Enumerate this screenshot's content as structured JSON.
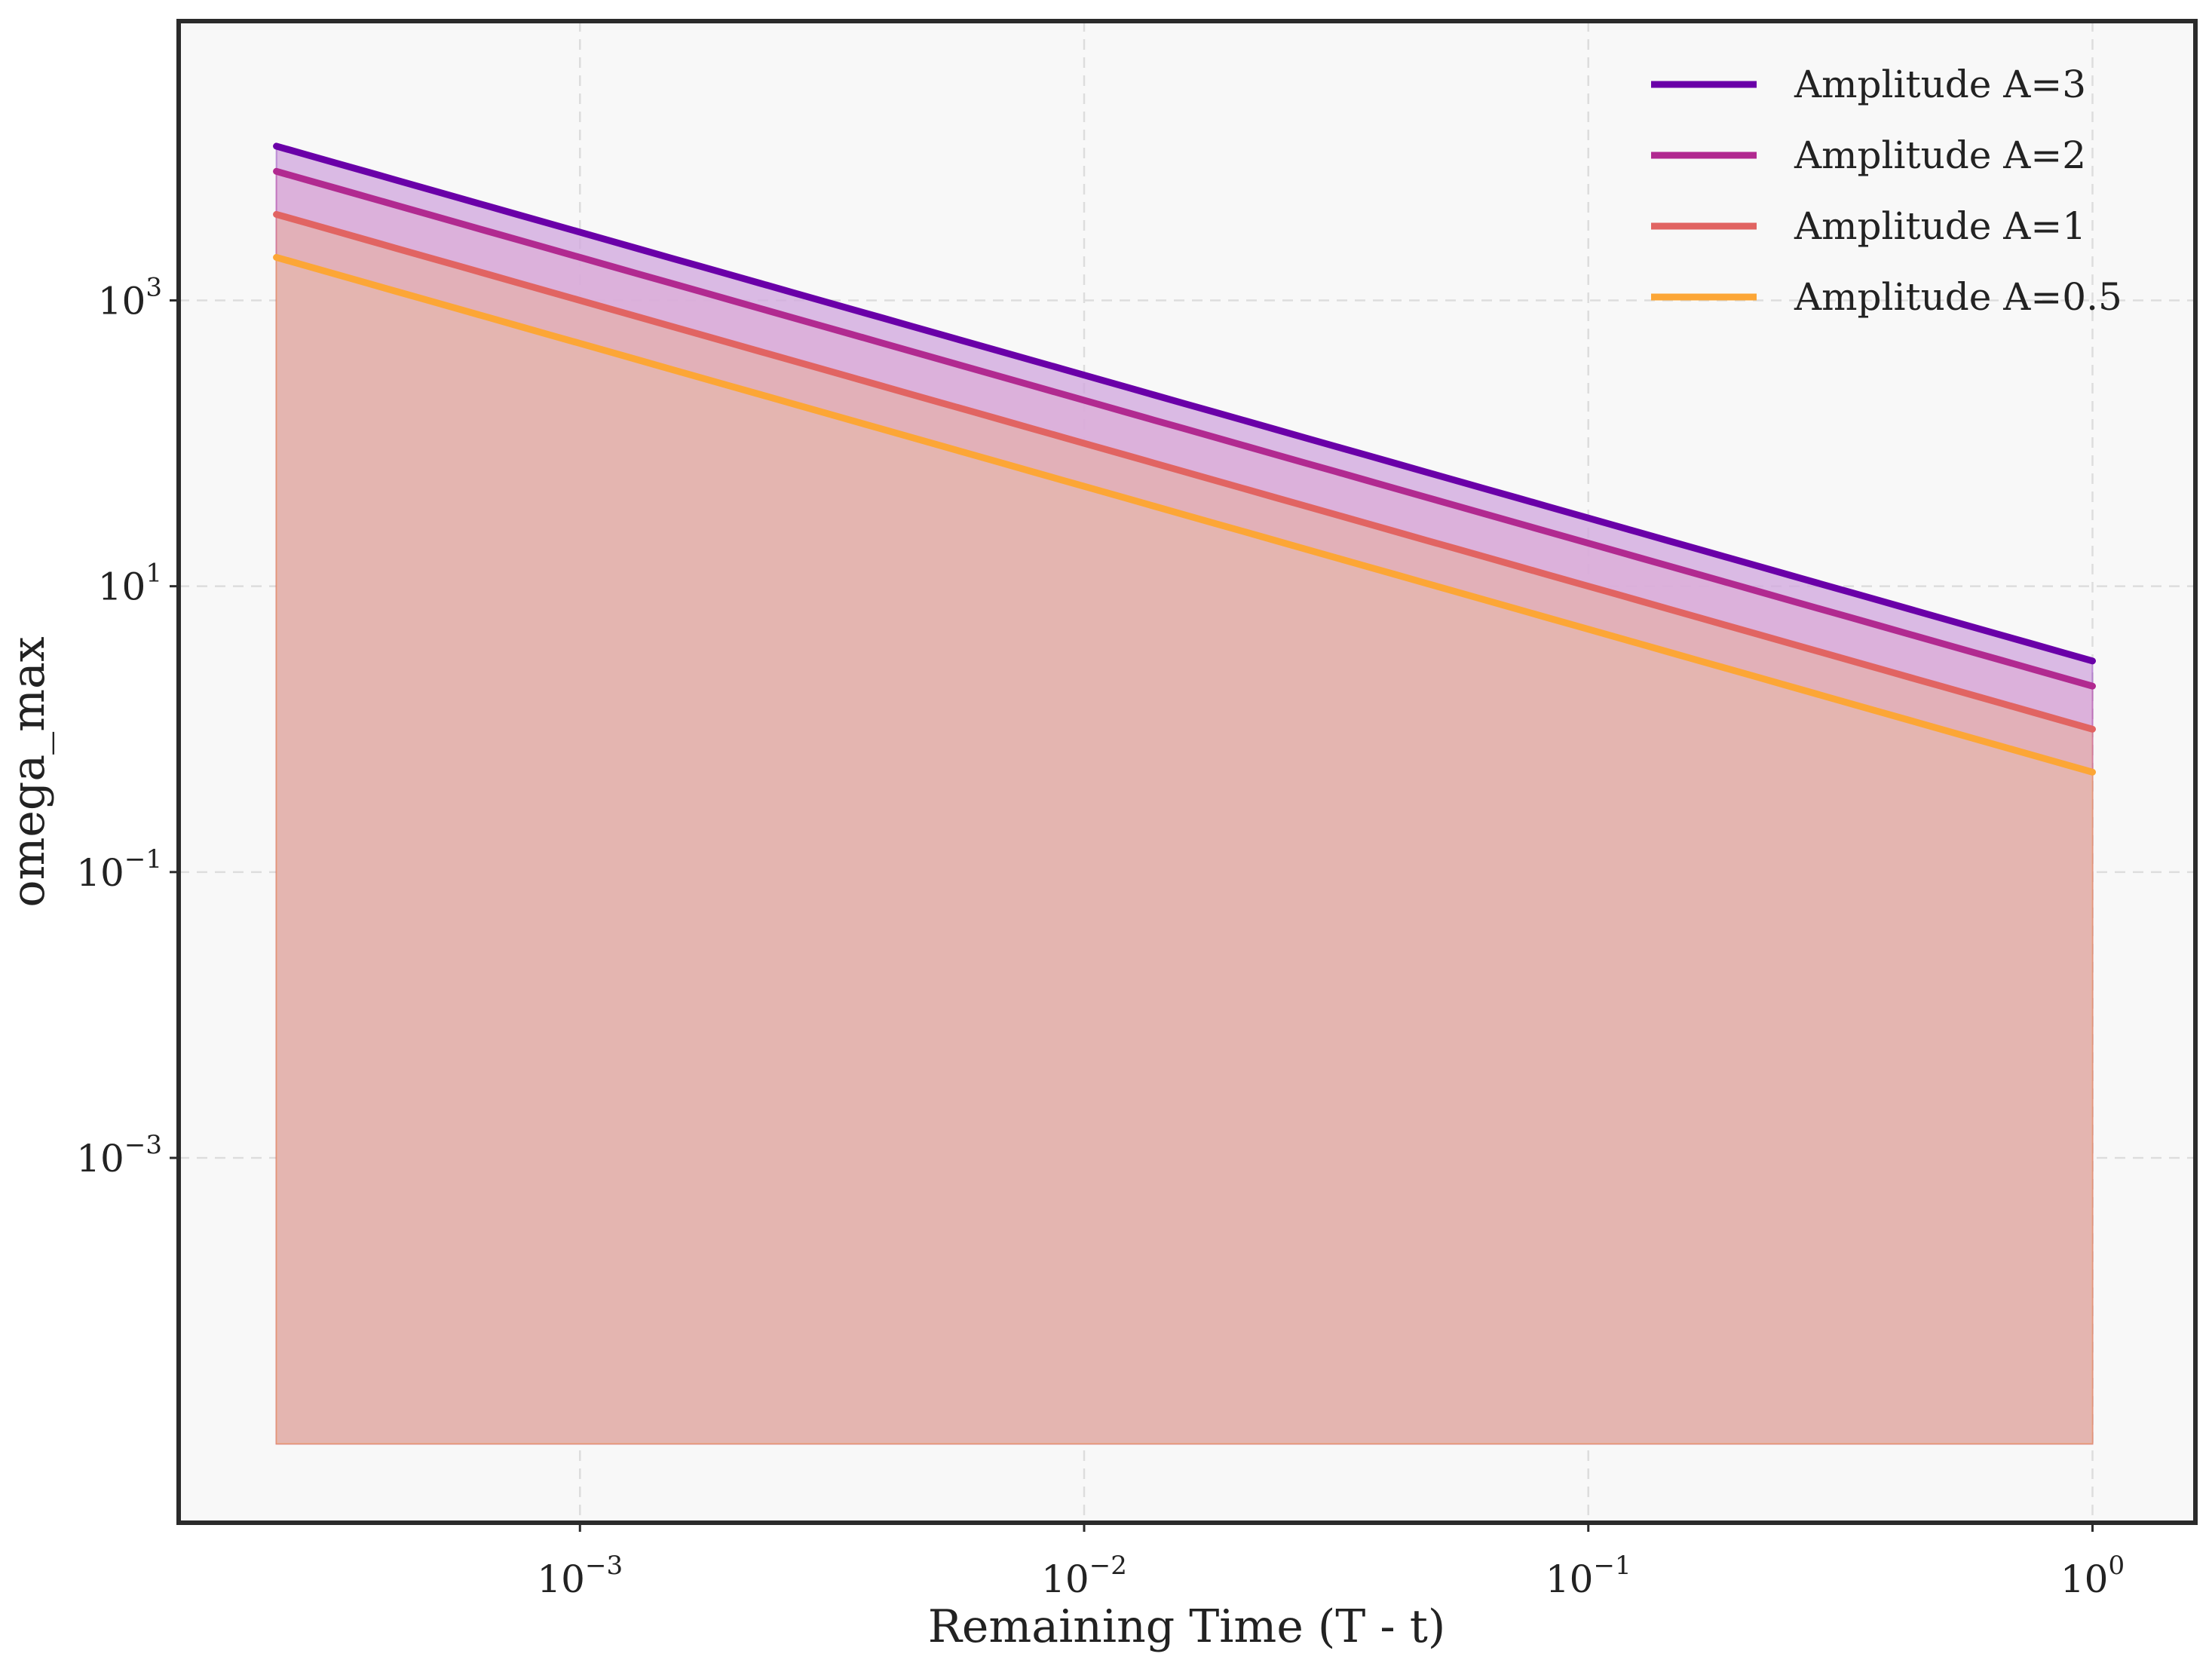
{
  "chart_data": {
    "type": "line",
    "title": "",
    "xlabel": "Remaining Time (T - t)",
    "ylabel": "omega_max",
    "xscale": "log",
    "yscale": "log",
    "xlim": [
      0.00016,
      1.6
    ],
    "ylim": [
      2.8e-06,
      90000
    ],
    "x_ticks": [
      {
        "value": 0.001,
        "base": "10",
        "exp": "−3"
      },
      {
        "value": 0.01,
        "base": "10",
        "exp": "−2"
      },
      {
        "value": 0.1,
        "base": "10",
        "exp": "−1"
      },
      {
        "value": 1,
        "base": "10",
        "exp": "0"
      }
    ],
    "y_ticks": [
      {
        "value": 0.001,
        "base": "10",
        "exp": "−3"
      },
      {
        "value": 0.1,
        "base": "10",
        "exp": "−1"
      },
      {
        "value": 10,
        "base": "10",
        "exp": "1"
      },
      {
        "value": 1000,
        "base": "10",
        "exp": "3"
      }
    ],
    "grid": true,
    "legend_position": "top-right",
    "fill_baseline": 1e-05,
    "x_range": [
      0.00025,
      1
    ],
    "series": [
      {
        "name": "Amplitude A=3",
        "coefficient": 3,
        "exponent": -1,
        "color": "#6a00a8",
        "fill_color": "#d0a6dd"
      },
      {
        "name": "Amplitude A=2",
        "coefficient": 2,
        "exponent": -1,
        "color": "#b12a90",
        "fill_color": "#dcaed8"
      },
      {
        "name": "Amplitude A=1",
        "coefficient": 1,
        "exponent": -1,
        "color": "#e16462",
        "fill_color": "#e4b0ac"
      },
      {
        "name": "Amplitude A=0.5",
        "coefficient": 0.5,
        "exponent": -1,
        "color": "#fca636",
        "fill_color": "#e4b7ae"
      }
    ],
    "colors": {
      "plot_background": "#f8f8f8",
      "frame": "#2b2b2b",
      "grid": "#dddddd"
    }
  }
}
